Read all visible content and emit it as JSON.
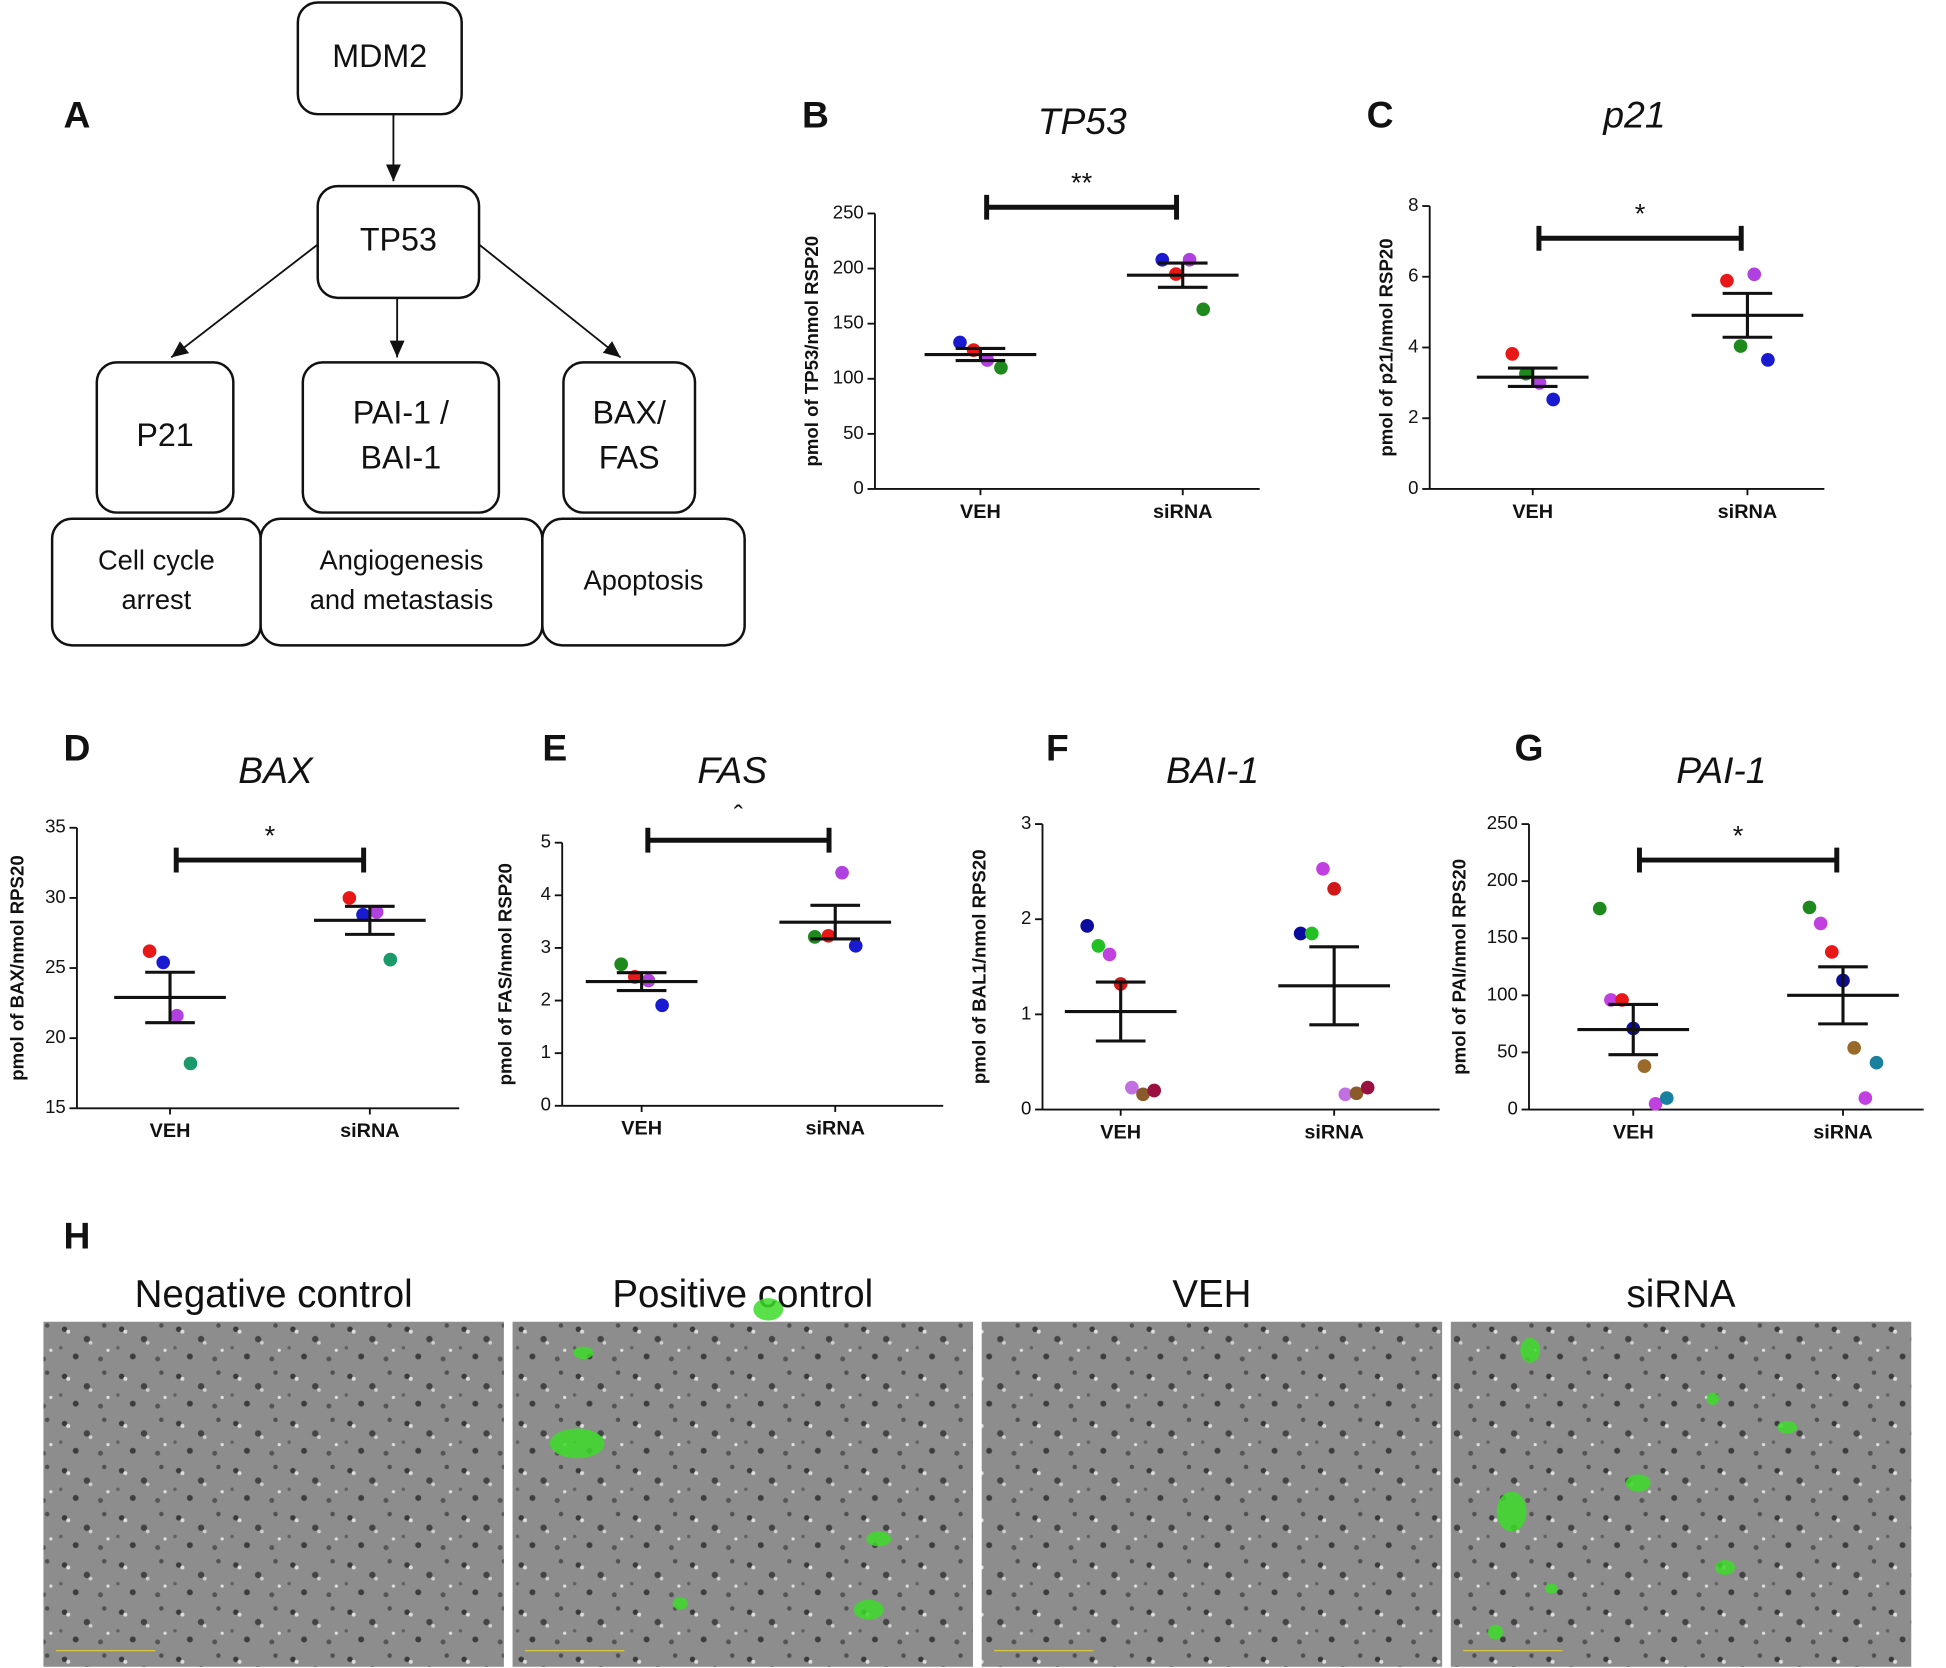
{
  "diagram": {
    "panel": "A",
    "nodes": [
      {
        "lines": [
          "MDM2"
        ]
      },
      {
        "lines": [
          "TP53"
        ]
      },
      {
        "lines": [
          "P21"
        ]
      },
      {
        "lines": [
          "PAI-1 /",
          "BAI-1"
        ]
      },
      {
        "lines": [
          "BAX/",
          "FAS"
        ]
      },
      {
        "lines": [
          "Cell cycle",
          "arrest"
        ]
      },
      {
        "lines": [
          "Angiogenesis",
          "and metastasis"
        ]
      },
      {
        "lines": [
          "Apoptosis"
        ]
      }
    ]
  },
  "chart_data": [
    {
      "type": "dot",
      "panel": "B",
      "title": "TP53",
      "ylabel": "pmol of TP53/nmol RSP20",
      "categories": [
        "VEH",
        "siRNA"
      ],
      "series": [
        {
          "color": "#1a1ad0",
          "values": [
            133,
            208
          ]
        },
        {
          "color": "#e81818",
          "values": [
            126,
            195
          ]
        },
        {
          "color": "#b040e0",
          "values": [
            117,
            208
          ]
        },
        {
          "color": "#1e8a1e",
          "values": [
            110,
            163
          ]
        }
      ],
      "means": [
        122,
        194
      ],
      "sem": [
        5.5,
        11
      ],
      "significance": "**",
      "ylim": [
        0,
        250
      ],
      "yticks": [
        0,
        50,
        100,
        150,
        200,
        250
      ]
    },
    {
      "type": "dot",
      "panel": "C",
      "title": "p21",
      "ylabel": "pmol of p21/nmol RSP20",
      "categories": [
        "VEH",
        "siRNA"
      ],
      "series": [
        {
          "color": "#e81818",
          "values": [
            3.82,
            5.89
          ]
        },
        {
          "color": "#1e8a1e",
          "values": [
            3.26,
            4.04
          ]
        },
        {
          "color": "#b040e0",
          "values": [
            3.0,
            6.07
          ]
        },
        {
          "color": "#1a1ad0",
          "values": [
            2.53,
            3.65
          ]
        }
      ],
      "means": [
        3.16,
        4.91
      ],
      "sem": [
        0.26,
        0.62
      ],
      "significance": "*",
      "ylim": [
        0,
        8
      ],
      "yticks": [
        0,
        2,
        4,
        6,
        8
      ]
    },
    {
      "type": "dot",
      "panel": "D",
      "title": "BAX",
      "ylabel": "pmol of BAX/nmol RPS20",
      "categories": [
        "VEH",
        "siRNA"
      ],
      "series": [
        {
          "color": "#e81818",
          "values": [
            26.2,
            30.0
          ]
        },
        {
          "color": "#1a1ad0",
          "values": [
            25.4,
            28.8
          ]
        },
        {
          "color": "#b040e0",
          "values": [
            21.6,
            29.0
          ]
        },
        {
          "color": "#1a9a6a",
          "values": [
            18.2,
            25.6
          ]
        }
      ],
      "means": [
        22.9,
        28.4
      ],
      "sem": [
        1.8,
        1.0
      ],
      "significance": "*",
      "ylim": [
        15,
        35
      ],
      "yticks": [
        15,
        20,
        25,
        30,
        35
      ]
    },
    {
      "type": "dot",
      "panel": "E",
      "title": "FAS",
      "ylabel": "pmol of FAS/nmol RSP20",
      "categories": [
        "VEH",
        "siRNA"
      ],
      "series": [
        {
          "color": "#1e8a1e",
          "values": [
            2.69,
            3.21
          ]
        },
        {
          "color": "#e81818",
          "values": [
            2.45,
            3.23
          ]
        },
        {
          "color": "#b040e0",
          "values": [
            2.38,
            4.43
          ]
        },
        {
          "color": "#1a1ad0",
          "values": [
            1.91,
            3.04
          ]
        }
      ],
      "means": [
        2.36,
        3.49
      ],
      "sem": [
        0.17,
        0.32
      ],
      "significance": "ˆ",
      "ylim": [
        0,
        5
      ],
      "yticks": [
        0,
        1,
        2,
        3,
        4,
        5
      ]
    },
    {
      "type": "dot",
      "panel": "F",
      "title": "BAI-1",
      "ylabel": "pmol of BAL1/nmol RPS20",
      "categories": [
        "VEH",
        "siRNA"
      ],
      "series": [
        {
          "color": "#0c0c9c",
          "values": [
            1.93,
            1.85
          ]
        },
        {
          "color": "#22c022",
          "values": [
            1.72,
            1.85
          ]
        },
        {
          "color": "#c040e0",
          "values": [
            1.63,
            2.53
          ]
        },
        {
          "color": "#d01818",
          "values": [
            1.32,
            2.32
          ]
        },
        {
          "color": "#c070e0",
          "values": [
            0.23,
            0.16
          ]
        },
        {
          "color": "#8a5a2a",
          "values": [
            0.16,
            0.17
          ]
        },
        {
          "color": "#9a1040",
          "values": [
            0.2,
            0.23
          ]
        }
      ],
      "means": [
        1.03,
        1.3
      ],
      "sem": [
        0.31,
        0.41
      ],
      "ylim": [
        0,
        3
      ],
      "yticks": [
        0,
        1,
        2,
        3
      ]
    },
    {
      "type": "dot",
      "panel": "G",
      "title": "PAI-1",
      "ylabel": "pmol of PAI/nmol RPS20",
      "categories": [
        "VEH",
        "siRNA"
      ],
      "series": [
        {
          "color": "#1e8a1e",
          "values": [
            176,
            177
          ]
        },
        {
          "color": "#c040e0",
          "values": [
            96,
            163
          ]
        },
        {
          "color": "#e81818",
          "values": [
            96,
            138
          ]
        },
        {
          "color": "#0c0c9c",
          "values": [
            71,
            113
          ]
        },
        {
          "color": "#9a6a2a",
          "values": [
            38,
            54
          ]
        },
        {
          "color": "#c040e0",
          "values": [
            5,
            10
          ]
        },
        {
          "color": "#1a80a0",
          "values": [
            10,
            41
          ]
        }
      ],
      "means": [
        70,
        100
      ],
      "sem": [
        22,
        25
      ],
      "significance": "*",
      "ylim": [
        0,
        250
      ],
      "yticks": [
        0,
        50,
        100,
        150,
        200,
        250
      ]
    }
  ],
  "micrographs": {
    "panel": "H",
    "labels": [
      "Negative control",
      "Positive control",
      "VEH",
      "siRNA"
    ]
  }
}
